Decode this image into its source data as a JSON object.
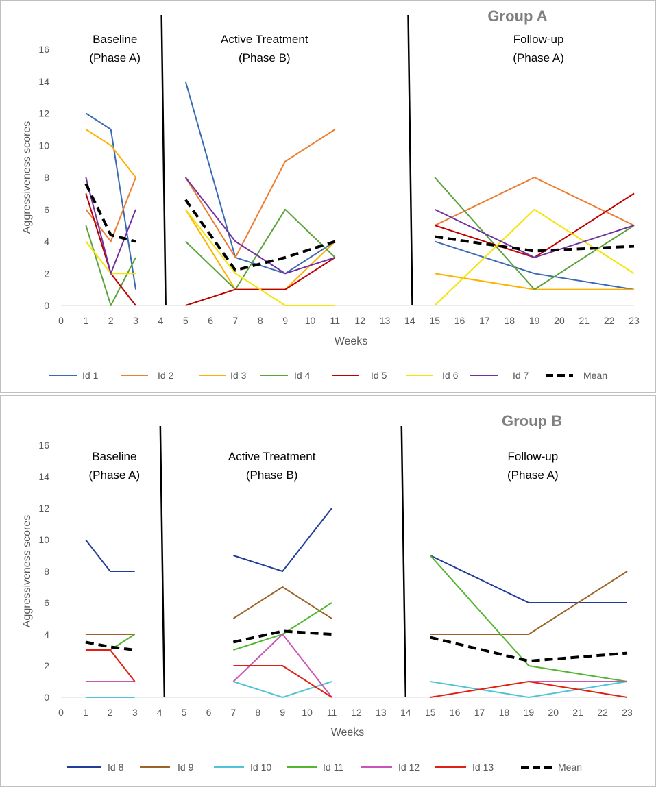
{
  "chart_data": [
    {
      "type": "line",
      "title": "Group A",
      "xlabel": "Weeks",
      "ylabel": "Aggressiveness scores",
      "xlim": [
        0,
        23
      ],
      "ylim": [
        0,
        16
      ],
      "x_ticks": [
        "0",
        "1",
        "2",
        "3",
        "4",
        "5",
        "6",
        "7",
        "8",
        "9",
        "10",
        "11",
        "12",
        "13",
        "14",
        "15",
        "16",
        "17",
        "18",
        "19",
        "20",
        "21",
        "22",
        "23"
      ],
      "y_ticks": [
        "0",
        "2",
        "4",
        "6",
        "8",
        "10",
        "12",
        "14",
        "16"
      ],
      "phase_lines": [
        4.2,
        14.1
      ],
      "phases": [
        {
          "line1": "Baseline",
          "line2": "(Phase A)",
          "x": 2
        },
        {
          "line1": "Active Treatment",
          "line2": "(Phase B)",
          "x": 8
        },
        {
          "line1": "Follow-up",
          "line2": "(Phase A)",
          "x": 19
        }
      ],
      "series": [
        {
          "name": "Id 1",
          "color": "#3a6ab4",
          "dashed": false,
          "segments": [
            [
              [
                1,
                12
              ],
              [
                2,
                11
              ],
              [
                3,
                1
              ]
            ],
            [
              [
                5,
                14
              ],
              [
                7,
                3
              ],
              [
                9,
                2
              ],
              [
                11,
                4
              ]
            ],
            [
              [
                15,
                4
              ],
              [
                19,
                2
              ],
              [
                23,
                1
              ]
            ]
          ]
        },
        {
          "name": "Id 2",
          "color": "#ed7d31",
          "dashed": false,
          "segments": [
            [
              [
                1,
                6
              ],
              [
                2,
                4
              ],
              [
                3,
                8
              ]
            ],
            [
              [
                5,
                8
              ],
              [
                7,
                3
              ],
              [
                9,
                9
              ],
              [
                11,
                11
              ]
            ],
            [
              [
                15,
                5
              ],
              [
                19,
                8
              ],
              [
                23,
                5
              ]
            ]
          ]
        },
        {
          "name": "Id 3",
          "color": "#ffb000",
          "dashed": false,
          "segments": [
            [
              [
                1,
                11
              ],
              [
                2,
                10
              ],
              [
                3,
                8
              ]
            ],
            [
              [
                5,
                6
              ],
              [
                7,
                1
              ],
              [
                9,
                1
              ],
              [
                11,
                4
              ]
            ],
            [
              [
                15,
                2
              ],
              [
                19,
                1
              ],
              [
                23,
                1
              ]
            ]
          ]
        },
        {
          "name": "Id 4",
          "color": "#5aa23a",
          "dashed": false,
          "segments": [
            [
              [
                1,
                5
              ],
              [
                2,
                0
              ],
              [
                3,
                3
              ]
            ],
            [
              [
                5,
                4
              ],
              [
                7,
                1
              ],
              [
                9,
                6
              ],
              [
                11,
                3
              ]
            ],
            [
              [
                15,
                8
              ],
              [
                19,
                1
              ],
              [
                23,
                5
              ]
            ]
          ]
        },
        {
          "name": "Id 5",
          "color": "#c00000",
          "dashed": false,
          "segments": [
            [
              [
                1,
                7
              ],
              [
                2,
                2
              ],
              [
                3,
                0
              ]
            ],
            [
              [
                5,
                0
              ],
              [
                7,
                1
              ],
              [
                9,
                1
              ],
              [
                11,
                3
              ]
            ],
            [
              [
                15,
                5
              ],
              [
                19,
                3
              ],
              [
                23,
                7
              ]
            ]
          ]
        },
        {
          "name": "Id 6",
          "color": "#f5e300",
          "dashed": false,
          "segments": [
            [
              [
                1,
                4
              ],
              [
                2,
                2
              ],
              [
                3,
                2
              ]
            ],
            [
              [
                5,
                6
              ],
              [
                7,
                2
              ],
              [
                9,
                0
              ],
              [
                11,
                0
              ]
            ],
            [
              [
                15,
                0
              ],
              [
                19,
                6
              ],
              [
                23,
                2
              ]
            ]
          ]
        },
        {
          "name": "Id 7",
          "color": "#7030a0",
          "dashed": false,
          "segments": [
            [
              [
                1,
                8
              ],
              [
                2,
                2
              ],
              [
                3,
                6
              ]
            ],
            [
              [
                5,
                8
              ],
              [
                7,
                4
              ],
              [
                9,
                2
              ],
              [
                11,
                3
              ]
            ],
            [
              [
                15,
                6
              ],
              [
                19,
                3
              ],
              [
                23,
                5
              ]
            ]
          ]
        },
        {
          "name": "Mean",
          "color": "#000000",
          "dashed": true,
          "segments": [
            [
              [
                1,
                7.6
              ],
              [
                2,
                4.4
              ],
              [
                3,
                4
              ]
            ],
            [
              [
                5,
                6.6
              ],
              [
                7,
                2.2
              ],
              [
                9,
                3
              ],
              [
                11,
                4
              ]
            ],
            [
              [
                15,
                4.3
              ],
              [
                19,
                3.4
              ],
              [
                23,
                3.7
              ]
            ]
          ]
        }
      ]
    },
    {
      "type": "line",
      "title": "Group B",
      "xlabel": "Weeks",
      "ylabel": "Aggressiveness scores",
      "xlim": [
        0,
        23
      ],
      "ylim": [
        0,
        16
      ],
      "x_ticks": [
        "0",
        "1",
        "2",
        "3",
        "4",
        "5",
        "6",
        "7",
        "8",
        "9",
        "10",
        "11",
        "12",
        "13",
        "14",
        "15",
        "16",
        "17",
        "18",
        "19",
        "20",
        "21",
        "22",
        "23"
      ],
      "y_ticks": [
        "0",
        "2",
        "4",
        "6",
        "8",
        "10",
        "12",
        "14",
        "16"
      ],
      "phase_lines": [
        4.2,
        14.0
      ],
      "phases": [
        {
          "line1": "Baseline",
          "line2": "(Phase A)",
          "x": 2
        },
        {
          "line1": "Active Treatment",
          "line2": "(Phase B)",
          "x": 8.4
        },
        {
          "line1": "Follow-up",
          "line2": "(Phase A)",
          "x": 19
        }
      ],
      "series": [
        {
          "name": "Id 8",
          "color": "#203d9a",
          "dashed": false,
          "segments": [
            [
              [
                1,
                10
              ],
              [
                2,
                8
              ],
              [
                3,
                8
              ]
            ],
            [
              [
                7,
                9
              ],
              [
                9,
                8
              ],
              [
                11,
                12
              ]
            ],
            [
              [
                15,
                9
              ],
              [
                19,
                6
              ],
              [
                23,
                6
              ]
            ]
          ]
        },
        {
          "name": "Id 9",
          "color": "#9c6327",
          "dashed": false,
          "segments": [
            [
              [
                1,
                4
              ],
              [
                2,
                4
              ],
              [
                3,
                4
              ]
            ],
            [
              [
                7,
                5
              ],
              [
                9,
                7
              ],
              [
                11,
                5
              ]
            ],
            [
              [
                15,
                4
              ],
              [
                19,
                4
              ],
              [
                23,
                8
              ]
            ]
          ]
        },
        {
          "name": "Id 10",
          "color": "#4fc3d7",
          "dashed": false,
          "segments": [
            [
              [
                1,
                0
              ],
              [
                2,
                0
              ],
              [
                3,
                0
              ]
            ],
            [
              [
                7,
                1
              ],
              [
                9,
                0
              ],
              [
                11,
                1
              ]
            ],
            [
              [
                15,
                1
              ],
              [
                19,
                0
              ],
              [
                23,
                1
              ]
            ]
          ]
        },
        {
          "name": "Id 11",
          "color": "#52b62e",
          "dashed": false,
          "segments": [
            [
              [
                2,
                3
              ],
              [
                3,
                4
              ]
            ],
            [
              [
                7,
                3
              ],
              [
                9,
                4
              ],
              [
                11,
                6
              ]
            ],
            [
              [
                15,
                9
              ],
              [
                19,
                2
              ],
              [
                23,
                1
              ]
            ]
          ]
        },
        {
          "name": "Id 12",
          "color": "#c955b4",
          "dashed": false,
          "segments": [
            [
              [
                1,
                1
              ],
              [
                2,
                1
              ],
              [
                3,
                1
              ]
            ],
            [
              [
                7,
                1
              ],
              [
                9,
                4
              ],
              [
                11,
                0
              ]
            ],
            [
              [
                19,
                1
              ],
              [
                23,
                1
              ]
            ]
          ]
        },
        {
          "name": "Id 13",
          "color": "#e02010",
          "dashed": false,
          "segments": [
            [
              [
                1,
                3
              ],
              [
                2,
                3
              ],
              [
                3,
                1
              ]
            ],
            [
              [
                7,
                2
              ],
              [
                9,
                2
              ],
              [
                11,
                0
              ]
            ],
            [
              [
                15,
                0
              ],
              [
                19,
                1
              ],
              [
                23,
                0
              ]
            ]
          ]
        },
        {
          "name": "Mean",
          "color": "#000000",
          "dashed": true,
          "segments": [
            [
              [
                1,
                3.5
              ],
              [
                2,
                3.2
              ],
              [
                3,
                3
              ]
            ],
            [
              [
                7,
                3.5
              ],
              [
                9,
                4.2
              ],
              [
                11,
                4
              ]
            ],
            [
              [
                15,
                3.8
              ],
              [
                19,
                2.3
              ],
              [
                23,
                2.8
              ]
            ]
          ]
        }
      ]
    }
  ]
}
